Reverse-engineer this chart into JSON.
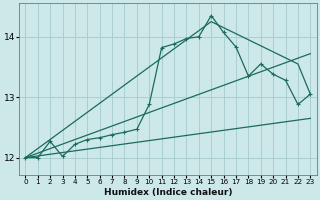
{
  "xlabel": "Humidex (Indice chaleur)",
  "bg_color": "#cde8e8",
  "grid_color": "#aacfcf",
  "line_color": "#1a6b5a",
  "xlim": [
    -0.5,
    23.5
  ],
  "ylim": [
    11.72,
    14.55
  ],
  "xticks": [
    0,
    1,
    2,
    3,
    4,
    5,
    6,
    7,
    8,
    9,
    10,
    11,
    12,
    13,
    14,
    15,
    16,
    17,
    18,
    19,
    20,
    21,
    22,
    23
  ],
  "yticks": [
    12,
    13,
    14
  ],
  "series1_x": [
    0,
    1,
    2,
    3,
    4,
    5,
    6,
    7,
    8,
    9,
    10,
    11,
    12,
    13,
    14,
    15,
    16,
    17,
    18,
    19,
    20,
    21,
    22,
    23
  ],
  "series1_y": [
    12.0,
    12.0,
    12.27,
    12.02,
    12.22,
    12.3,
    12.33,
    12.38,
    12.42,
    12.47,
    12.88,
    13.82,
    13.88,
    13.97,
    14.0,
    14.35,
    14.07,
    13.83,
    13.35,
    13.55,
    13.38,
    13.28,
    12.88,
    13.05
  ],
  "series2_x": [
    0,
    23
  ],
  "series2_y": [
    12.0,
    12.65
  ],
  "series3_x": [
    0,
    23
  ],
  "series3_y": [
    12.0,
    13.72
  ],
  "series4_x": [
    0,
    15,
    22,
    23
  ],
  "series4_y": [
    12.0,
    14.25,
    13.55,
    13.05
  ]
}
